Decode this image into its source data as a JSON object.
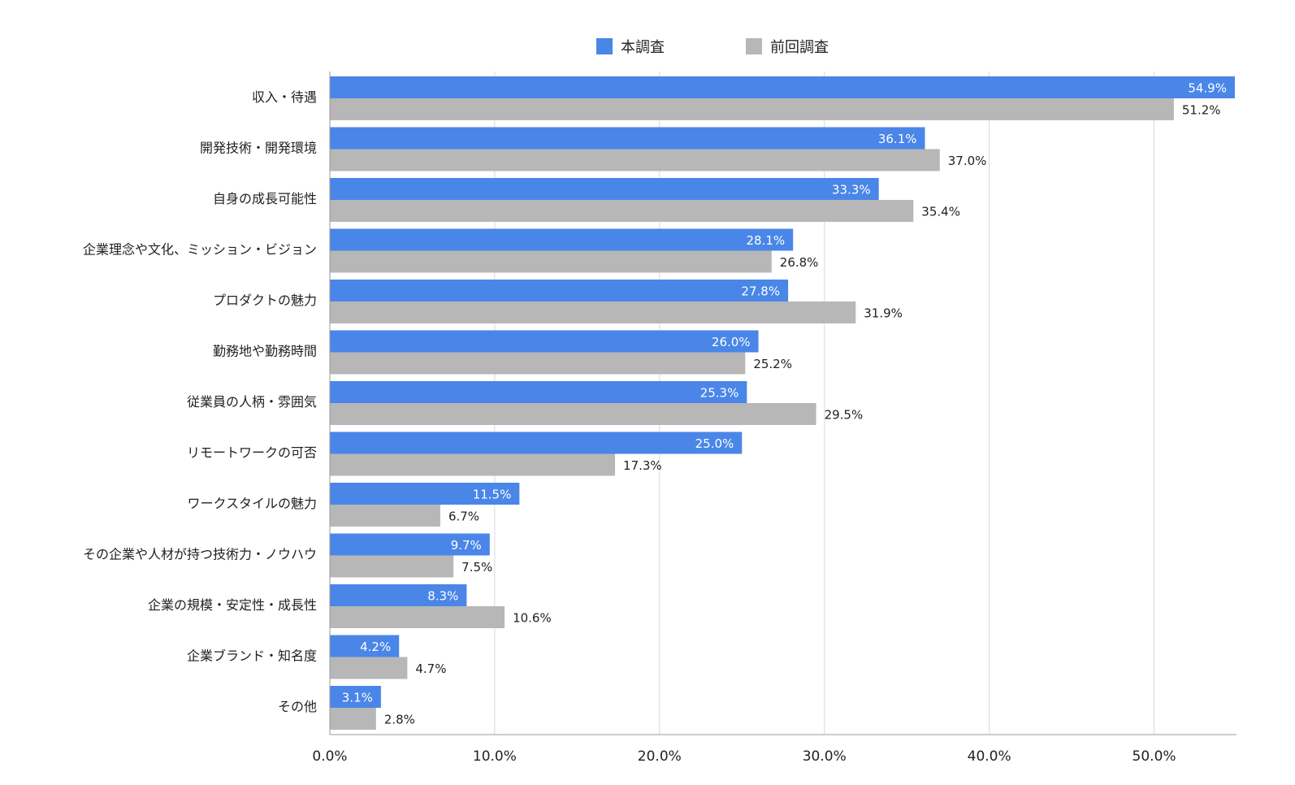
{
  "chart_data": {
    "type": "bar",
    "orientation": "horizontal",
    "categories": [
      "収入・待遇",
      "開発技術・開発環境",
      "自身の成長可能性",
      "企業理念や文化、ミッション・ビジョン",
      "プロダクトの魅力",
      "勤務地や勤務時間",
      "従業員の人柄・雰囲気",
      "リモートワークの可否",
      "ワークスタイルの魅力",
      "その企業や人材が持つ技術力・ノウハウ",
      "企業の規模・安定性・成長性",
      "企業ブランド・知名度",
      "その他"
    ],
    "series": [
      {
        "name": "本調査",
        "color": "#4a86e8",
        "values": [
          54.9,
          36.1,
          33.3,
          28.1,
          27.8,
          26.0,
          25.3,
          25.0,
          11.5,
          9.7,
          8.3,
          4.2,
          3.1
        ],
        "labels": [
          "54.9%",
          "36.1%",
          "33.3%",
          "28.1%",
          "27.8%",
          "26.0%",
          "25.3%",
          "25.0%",
          "11.5%",
          "9.7%",
          "8.3%",
          "4.2%",
          "3.1%"
        ]
      },
      {
        "name": "前回調査",
        "color": "#b7b7b7",
        "values": [
          51.2,
          37.0,
          35.4,
          26.8,
          31.9,
          25.2,
          29.5,
          17.3,
          6.7,
          7.5,
          10.6,
          4.7,
          2.8
        ],
        "labels": [
          "51.2%",
          "37.0%",
          "35.4%",
          "26.8%",
          "31.9%",
          "25.2%",
          "29.5%",
          "17.3%",
          "6.7%",
          "7.5%",
          "10.6%",
          "4.7%",
          "2.8%"
        ]
      }
    ],
    "xlim": [
      0,
      55
    ],
    "xticks": [
      0,
      10,
      20,
      30,
      40,
      50
    ],
    "xtick_labels": [
      "0.0%",
      "10.0%",
      "20.0%",
      "30.0%",
      "40.0%",
      "50.0%"
    ],
    "grid": true,
    "legend": "top-center"
  }
}
